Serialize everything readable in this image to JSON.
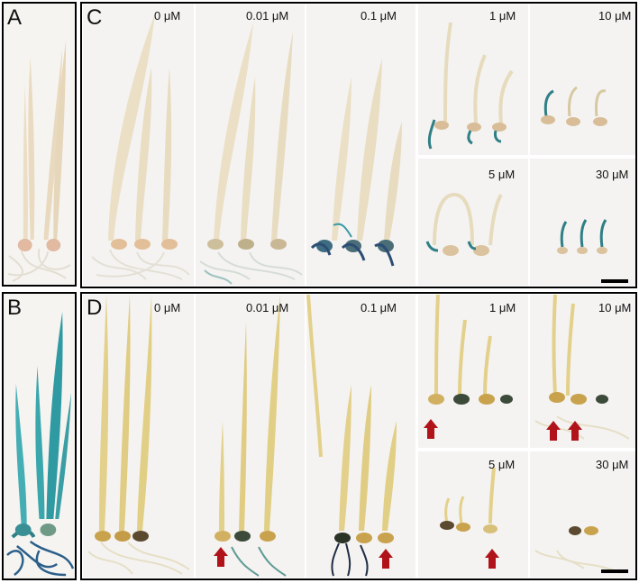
{
  "panels": {
    "A": {
      "letter": "A"
    },
    "B": {
      "letter": "B"
    },
    "C": {
      "letter": "C",
      "labels": [
        "0 μM",
        "0.01 μM",
        "0.1 μM",
        "1 μM",
        "10 μM",
        "5 μM",
        "30 μM"
      ]
    },
    "D": {
      "letter": "D",
      "labels": [
        "0 μM",
        "0.01 μM",
        "0.1 μM",
        "1 μM",
        "10 μM",
        "5 μM",
        "30 μM"
      ]
    }
  },
  "colors": {
    "border": "#000000",
    "c_leaf": "#e8dcc0",
    "c_root": "#e6e2d8",
    "d_leaf": "#e2cf86",
    "d_root": "#e7e0c8",
    "seed_c": "#e3bf99",
    "seed_d": "#c9a24d",
    "gus_blue": "#2f7f86",
    "b_leaf": "#3aa3a8",
    "arrow_red": "#b0141a",
    "background": "#ffffff"
  }
}
